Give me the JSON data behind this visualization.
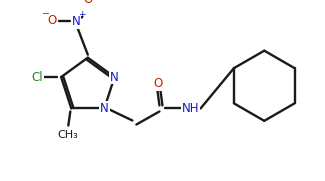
{
  "bg_color": "#ffffff",
  "line_color": "#1a1a1a",
  "n_color": "#1414cc",
  "o_color": "#cc2200",
  "cl_color": "#228822",
  "lw": 1.7,
  "figsize": [
    3.25,
    1.81
  ],
  "dpi": 100,
  "xlim": [
    5,
    320
  ],
  "ylim": [
    10,
    175
  ]
}
